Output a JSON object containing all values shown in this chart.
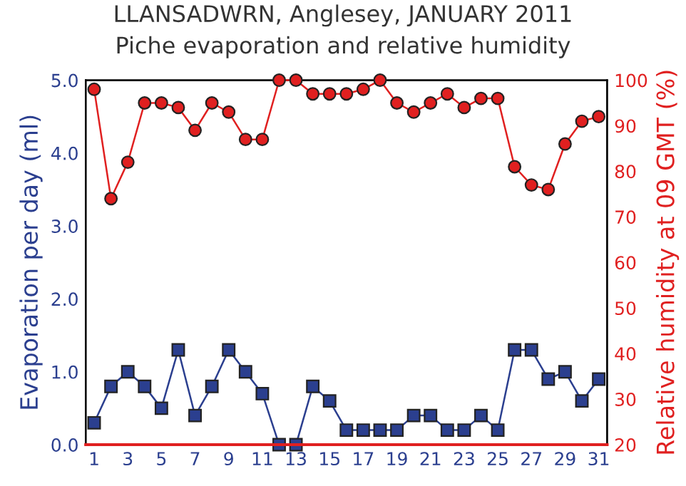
{
  "chart_data": {
    "type": "line",
    "title": "LLANSADWRN, Anglesey, JANUARY 2011",
    "subtitle": "Piche evaporation and relative humidity",
    "xlabel": null,
    "ylabel": "Evaporation per day (ml)",
    "y2label": "Relative humidity at 09 GMT (%)",
    "x": [
      1,
      2,
      3,
      4,
      5,
      6,
      7,
      8,
      9,
      10,
      11,
      12,
      13,
      14,
      15,
      16,
      17,
      18,
      19,
      20,
      21,
      22,
      23,
      24,
      25,
      26,
      27,
      28,
      29,
      30,
      31
    ],
    "xlim": [
      0.5,
      31.5
    ],
    "xticks": [
      1,
      3,
      5,
      7,
      9,
      11,
      13,
      15,
      17,
      19,
      21,
      23,
      25,
      27,
      29,
      31
    ],
    "ylim": [
      0,
      5
    ],
    "yticks": [
      {
        "value": 0,
        "label": "0.0"
      },
      {
        "value": 1,
        "label": "1.0"
      },
      {
        "value": 2,
        "label": "2.0"
      },
      {
        "value": 3,
        "label": "3.0"
      },
      {
        "value": 4,
        "label": "4.0"
      },
      {
        "value": 5,
        "label": "5.0"
      }
    ],
    "y2lim": [
      20,
      100
    ],
    "y2ticks": [
      20,
      30,
      40,
      50,
      60,
      70,
      80,
      90,
      100
    ],
    "grid": false,
    "legend": false,
    "series": [
      {
        "color": "#2b3f8f",
        "marker": "square",
        "values": [
          0.3,
          0.8,
          1.0,
          0.8,
          0.5,
          1.3,
          0.4,
          0.8,
          1.3,
          1.0,
          0.7,
          0,
          0,
          0.8,
          0.6,
          0.2,
          0.2,
          0.2,
          0.2,
          0.4,
          0.4,
          0.2,
          0.2,
          0.4,
          0.2,
          1.3,
          1.3,
          0.9,
          1.0,
          0.6,
          0.9
        ]
      },
      {
        "color": "#e02020",
        "marker": "circle",
        "axis": "y2",
        "values": [
          98,
          74,
          82,
          95,
          95,
          94,
          89,
          95,
          93,
          87,
          87,
          100,
          100,
          97,
          97,
          97,
          98,
          100,
          95,
          93,
          95,
          97,
          94,
          96,
          96,
          81,
          77,
          76,
          86,
          91,
          92
        ]
      }
    ]
  }
}
